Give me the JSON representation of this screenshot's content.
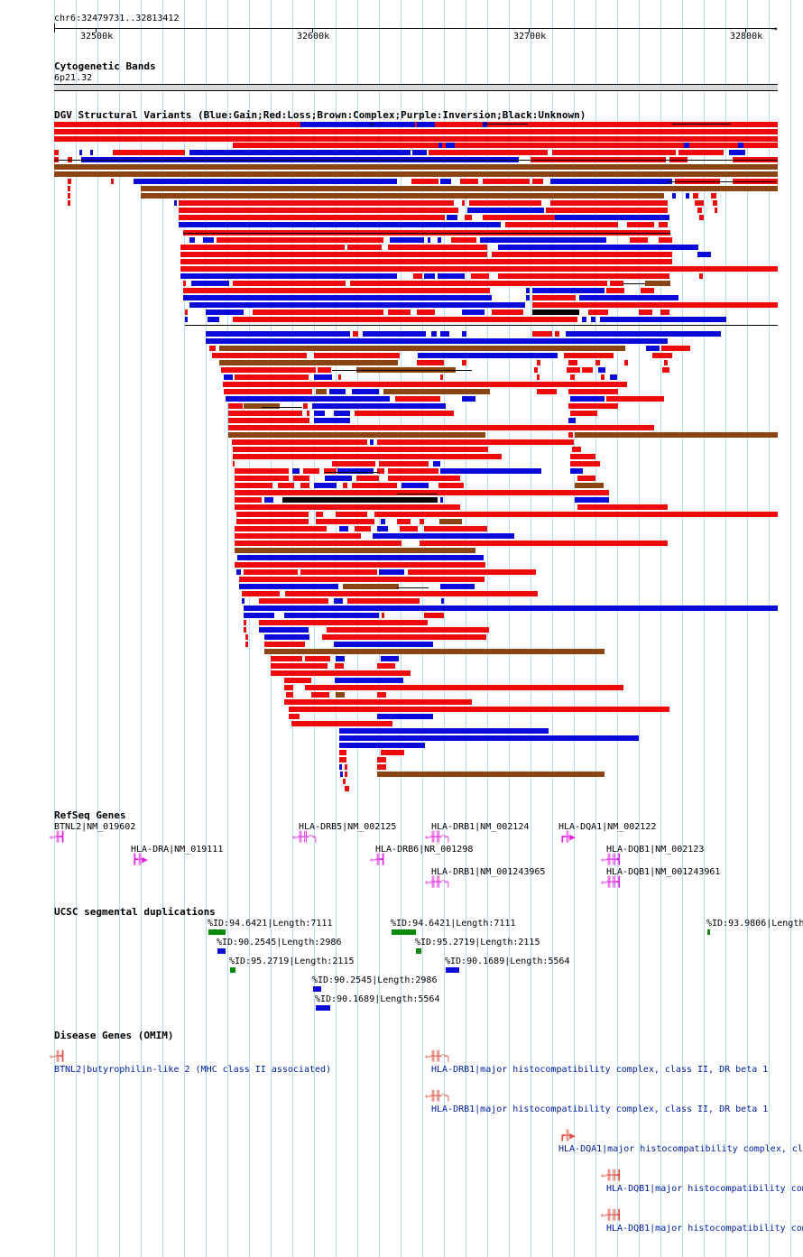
{
  "ruler": {
    "position": "chr6:32479731..32813412",
    "ticks": [
      "32500k",
      "32600k",
      "32700k",
      "32800k"
    ]
  },
  "cytobands": {
    "title": "Cytogenetic Bands",
    "band": "6p21.32"
  },
  "dgv": {
    "title": "DGV Structural Variants (Blue:Gain;Red:Loss;Brown:Complex;Purple:Inversion;Black:Unknown)",
    "colors": {
      "gain": "#0b0bd8",
      "loss": "#ee0b0b",
      "complex": "#8b4513",
      "unknown": "#000000"
    }
  },
  "refseq": {
    "title": "RefSeq Genes",
    "genes": [
      {
        "label": "BTNL2|NM_019602",
        "glyph": "⇐╫┫"
      },
      {
        "label": "HLA-DRA|NM_019111",
        "glyph": "┣╫▶"
      },
      {
        "label": "HLA-DRB5|NM_002125",
        "glyph": "⇐╫╫⌒╮"
      },
      {
        "label": "HLA-DRB6|NR_001298",
        "glyph": "⇐╫┫"
      },
      {
        "label": "HLA-DRB1|NM_002124",
        "glyph": "⇐╫╫⌒╮"
      },
      {
        "label": "HLA-DRB1|NM_001243965",
        "glyph": "⇐╫╫⌒╮"
      },
      {
        "label": "HLA-DQA1|NM_002122",
        "glyph": "┏╫▶"
      },
      {
        "label": "HLA-DQB1|NM_002123",
        "glyph": "⇐╫╫┫"
      },
      {
        "label": "HLA-DQB1|NM_001243961",
        "glyph": "⇐╫╫┫"
      }
    ]
  },
  "segdups": {
    "title": "UCSC segmental duplications",
    "items": [
      "%ID:94.6421|Length:7111",
      "%ID:94.6421|Length:7111",
      "%ID:93.9806|Length:",
      "%ID:90.2545|Length:2986",
      "%ID:95.2719|Length:2115",
      "%ID:95.2719|Length:2115",
      "%ID:90.1689|Length:5564",
      "%ID:90.2545|Length:2986",
      "%ID:90.1689|Length:5564"
    ]
  },
  "omim": {
    "title": "Disease Genes (OMIM)",
    "items": [
      {
        "label": "BTNL2|butyrophilin-like 2 (MHC class II associated)",
        "glyph": "⇐╫┫"
      },
      {
        "label": "HLA-DRB1|major histocompatibility complex, class II, DR beta 1",
        "glyph": "⇐╫╫⌒╮"
      },
      {
        "label": "HLA-DRB1|major histocompatibility complex, class II, DR beta 1",
        "glyph": "⇐╫╫⌒╮"
      },
      {
        "label": "HLA-DQA1|major histocompatibility complex, cl",
        "glyph": "┏╫▶"
      },
      {
        "label": "HLA-DQB1|major histocompatibility com",
        "glyph": "⇐╫╫┫"
      },
      {
        "label": "HLA-DQB1|major histocompatibility com",
        "glyph": "⇐╫╫┫"
      }
    ]
  }
}
